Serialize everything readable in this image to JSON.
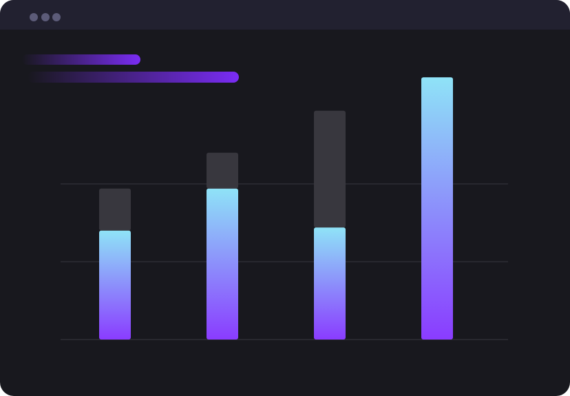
{
  "chart_data": {
    "type": "bar",
    "stacked": true,
    "categories": [
      null,
      null,
      null,
      null
    ],
    "series": [
      {
        "color": [
          "#8fe3f7",
          "#8a3cff"
        ],
        "values": [
          1.4,
          1.94,
          1.44,
          3.37
        ]
      },
      {
        "color": "#38373e",
        "values": [
          0.54,
          0.46,
          1.5,
          null
        ]
      }
    ],
    "ylim": [
      0,
      3.5
    ],
    "yticks": [
      0,
      1,
      2
    ],
    "grid": true
  }
}
